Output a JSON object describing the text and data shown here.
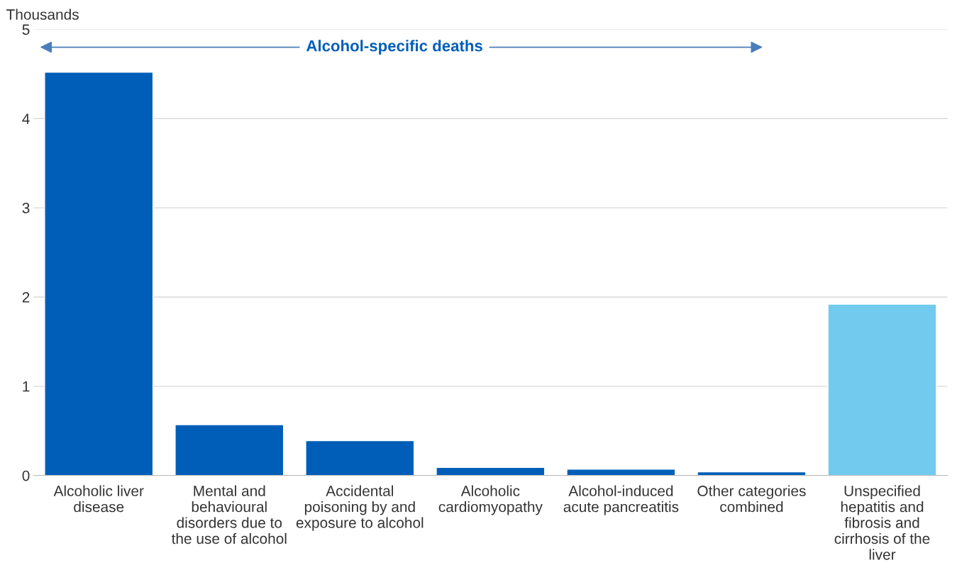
{
  "chart_data": {
    "type": "bar",
    "ylabel": "Thousands",
    "categories": [
      "Alcoholic liver disease",
      "Mental and behavioural disorders due to the use of alcohol",
      "Accidental poisoning by and exposure to alcohol",
      "Alcoholic cardiomyopathy",
      "Alcohol-induced acute pancreatitis",
      "Other categories combined",
      "Unspecified hepatitis and fibrosis and cirrhosis of the liver"
    ],
    "values": [
      4.52,
      0.57,
      0.39,
      0.09,
      0.07,
      0.04,
      1.92
    ],
    "colors": [
      "#005eb8",
      "#005eb8",
      "#005eb8",
      "#005eb8",
      "#005eb8",
      "#005eb8",
      "#72cbee"
    ],
    "ylim": [
      0,
      5
    ],
    "yticks": [
      0,
      1,
      2,
      3,
      4,
      5
    ],
    "grid": "y",
    "legend": false,
    "annotations": [
      "Alcohol-specific deaths"
    ]
  }
}
